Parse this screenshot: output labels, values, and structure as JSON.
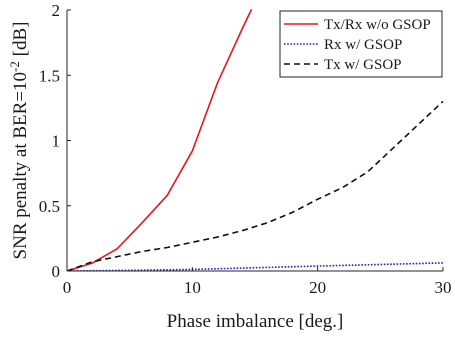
{
  "chart_data": {
    "type": "line",
    "xlabel": "Phase imbalance [deg.]",
    "ylabel_prefix": "SNR penalty at BER=10",
    "ylabel_exponent": "-2",
    "ylabel_suffix": " [dB]",
    "xlim": [
      0,
      30
    ],
    "ylim": [
      0,
      2
    ],
    "x_ticks": [
      0,
      10,
      20,
      30
    ],
    "x_tick_labels": [
      "0",
      "10",
      "20",
      "30"
    ],
    "y_ticks": [
      0,
      0.5,
      1,
      1.5,
      2
    ],
    "y_tick_labels": [
      "0",
      "0.5",
      "1",
      "1.5",
      "2"
    ],
    "grid": false,
    "legend_position": "top-right",
    "series": [
      {
        "name": "Tx/Rx w/o GSOP",
        "color": "#e8171d",
        "dash": "solid",
        "x": [
          0,
          2,
          4,
          6,
          8,
          10,
          12,
          14,
          14.7
        ],
        "y": [
          0,
          0.06,
          0.17,
          0.37,
          0.58,
          0.92,
          1.44,
          1.86,
          2.0
        ]
      },
      {
        "name": "Rx w/ GSOP",
        "color": "#1b24c9",
        "dash": "dotted",
        "x": [
          0,
          5,
          10,
          15,
          20,
          25,
          30
        ],
        "y": [
          0,
          0.005,
          0.012,
          0.025,
          0.038,
          0.05,
          0.062
        ]
      },
      {
        "name": "Tx w/ GSOP",
        "color": "#111111",
        "dash": "dashed",
        "x": [
          0,
          2,
          4,
          6,
          8,
          10,
          12,
          14,
          16,
          18,
          20,
          22,
          24,
          26,
          28,
          30
        ],
        "y": [
          0,
          0.07,
          0.11,
          0.15,
          0.18,
          0.22,
          0.26,
          0.31,
          0.37,
          0.45,
          0.55,
          0.64,
          0.76,
          0.94,
          1.12,
          1.3
        ]
      }
    ]
  }
}
